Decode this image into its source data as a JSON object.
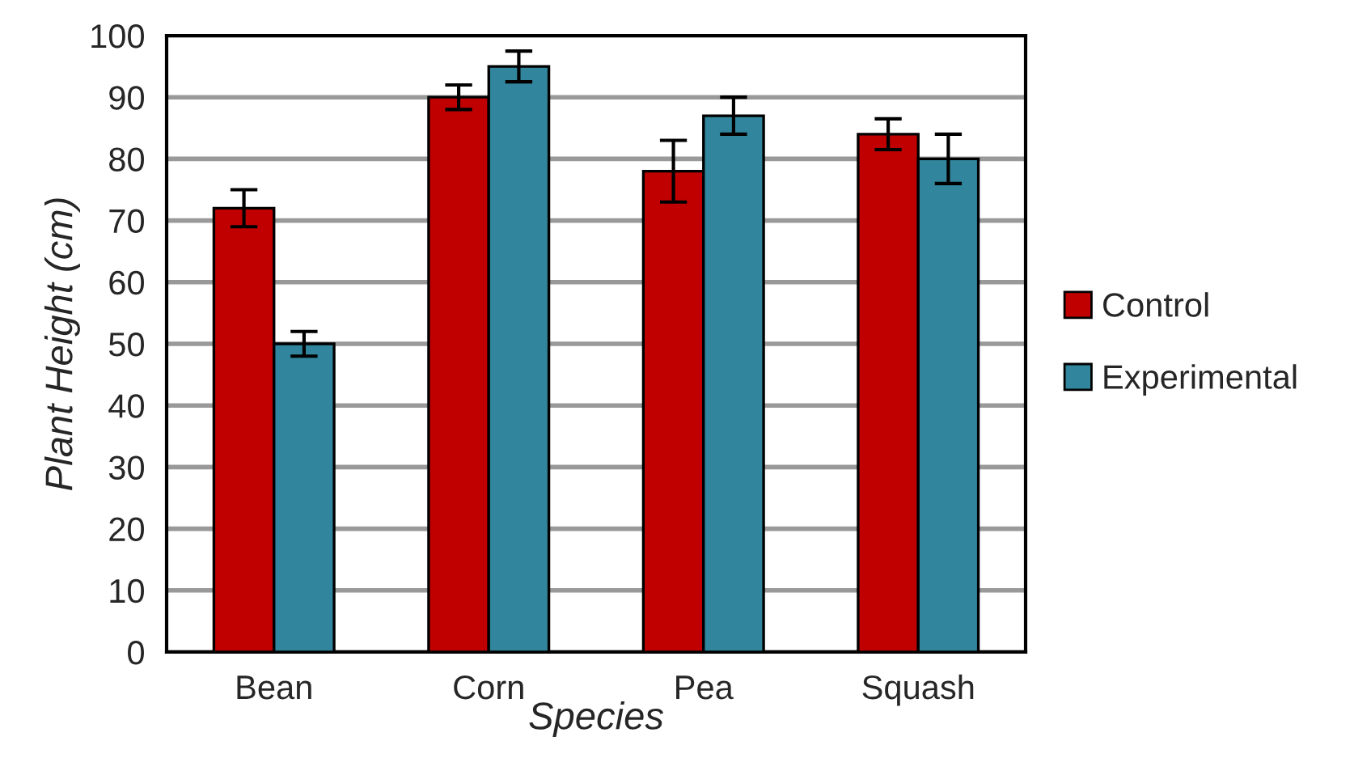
{
  "chart_data": {
    "type": "bar",
    "xlabel": "Species",
    "ylabel": "Plant Height (cm)",
    "categories": [
      "Bean",
      "Corn",
      "Pea",
      "Squash"
    ],
    "series": [
      {
        "name": "Control",
        "color": "#c00000",
        "values": [
          72,
          90,
          78,
          84
        ],
        "errors": [
          3,
          2,
          5,
          2.5
        ]
      },
      {
        "name": "Experimental",
        "color": "#31859c",
        "values": [
          50,
          95,
          87,
          80
        ],
        "errors": [
          2,
          2.5,
          3,
          4
        ]
      }
    ],
    "ylim": [
      0,
      100
    ],
    "yticks": [
      0,
      10,
      20,
      30,
      40,
      50,
      60,
      70,
      80,
      90,
      100
    ],
    "grid": "y",
    "legend": "right"
  }
}
